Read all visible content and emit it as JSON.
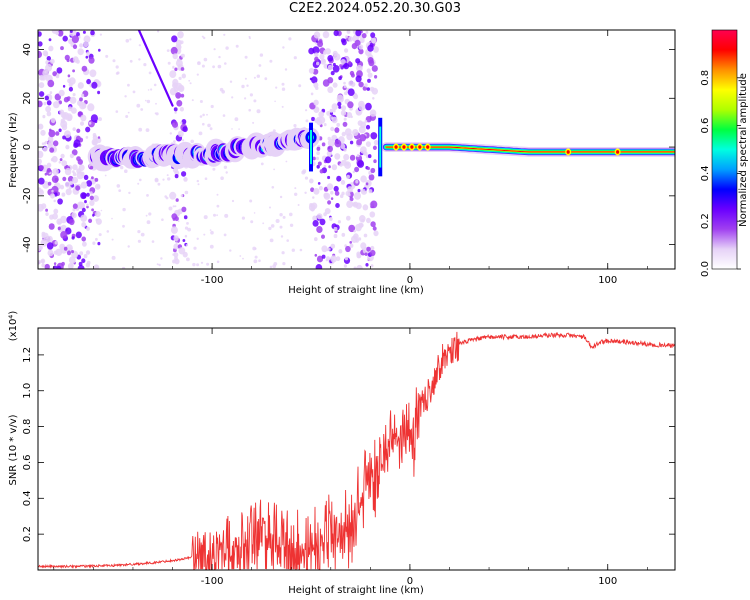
{
  "title": "C2E2.2024.052.20.30.G03",
  "colors": {
    "snr_line": "#ee3333",
    "colormap": [
      "#ffffff",
      "#e6d2f7",
      "#a040f0",
      "#6a00ff",
      "#0000ff",
      "#00a0ff",
      "#00ffe0",
      "#00ff40",
      "#b0ff00",
      "#ffff00",
      "#ff9000",
      "#ff0000",
      "#ff0050"
    ]
  },
  "chart_data": [
    {
      "type": "heatmap",
      "xlabel": "Height of straight line (km)",
      "ylabel": "Frequency (Hz)",
      "xlim": [
        -188,
        134
      ],
      "ylim": [
        -50,
        48
      ],
      "xticks": [
        -100,
        0,
        100
      ],
      "xtick_labels": [
        "-100",
        "0",
        "100"
      ],
      "yticks": [
        -40,
        -20,
        0,
        20,
        40
      ],
      "ytick_labels": [
        "-40",
        "-20",
        "0",
        "20",
        "40"
      ],
      "colorbar": {
        "label": "Normalized spectral amplitude",
        "range": [
          0,
          1
        ],
        "ticks": [
          0.0,
          0.2,
          0.4,
          0.6,
          0.8
        ],
        "tick_labels": [
          "0.0",
          "0.2",
          "0.4",
          "0.6",
          "0.8"
        ]
      },
      "noise_bands_x": [
        [
          -188,
          -157
        ],
        [
          -120,
          -113
        ],
        [
          -50,
          -17
        ]
      ],
      "ridge": [
        [
          -158,
          -4
        ],
        [
          -150,
          -4
        ],
        [
          -140,
          -5
        ],
        [
          -130,
          -4
        ],
        [
          -120,
          -3
        ],
        [
          -110,
          -3
        ],
        [
          -100,
          -3
        ],
        [
          -90,
          -1
        ],
        [
          -80,
          0
        ],
        [
          -70,
          1
        ],
        [
          -60,
          2
        ],
        [
          -52,
          3
        ],
        [
          -13,
          0
        ],
        [
          0,
          0
        ],
        [
          20,
          0
        ],
        [
          40,
          -1
        ],
        [
          60,
          -2
        ],
        [
          80,
          -2
        ],
        [
          100,
          -2
        ],
        [
          134,
          -2
        ]
      ],
      "streak": [
        [
          -137,
          48
        ],
        [
          -120,
          17
        ]
      ]
    },
    {
      "type": "line",
      "xlabel": "Height of straight line (km)",
      "ylabel": "SNR (10 * v/v)",
      "y_multiplier": "(x10⁴)",
      "xlim": [
        -188,
        134
      ],
      "ylim": [
        0,
        1.35
      ],
      "xticks": [
        -100,
        0,
        100
      ],
      "xtick_labels": [
        "-100",
        "0",
        "100"
      ],
      "yticks": [
        0.2,
        0.4,
        0.6,
        0.8,
        1.0,
        1.2
      ],
      "ytick_labels": [
        "0.2",
        "0.4",
        "0.6",
        "0.8",
        "1.0",
        "1.2"
      ],
      "series": [
        {
          "x": [
            -188,
            -170,
            -150,
            -130,
            -115,
            -105,
            -98,
            -92,
            -87,
            -82,
            -78,
            -73,
            -68,
            -63,
            -58,
            -53,
            -48,
            -43,
            -38,
            -33,
            -28,
            -25,
            -22,
            -20,
            -17,
            -14,
            -11,
            -8,
            -5,
            -2,
            2,
            6,
            10,
            15,
            20,
            25,
            30,
            40,
            50,
            60,
            70,
            80,
            88,
            92,
            96,
            100,
            110,
            120,
            134
          ],
          "y": [
            0.02,
            0.02,
            0.025,
            0.04,
            0.06,
            0.09,
            0.14,
            0.18,
            0.2,
            0.24,
            0.32,
            0.26,
            0.22,
            0.2,
            0.18,
            0.17,
            0.22,
            0.26,
            0.3,
            0.32,
            0.35,
            0.5,
            0.6,
            0.68,
            0.6,
            0.72,
            0.75,
            0.78,
            0.82,
            0.8,
            0.88,
            0.92,
            1.0,
            1.15,
            1.22,
            1.26,
            1.28,
            1.3,
            1.3,
            1.3,
            1.31,
            1.31,
            1.3,
            1.24,
            1.27,
            1.28,
            1.27,
            1.26,
            1.25
          ]
        }
      ]
    }
  ]
}
